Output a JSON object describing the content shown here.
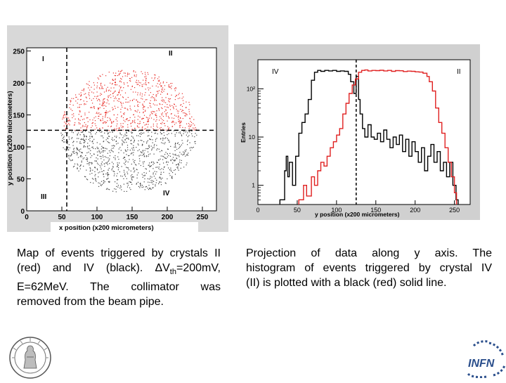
{
  "chart_data": [
    {
      "type": "scatter",
      "xlabel": "x position (x200 micrometers)",
      "ylabel": "y position (x200 micrometers)",
      "xlim": [
        0,
        270
      ],
      "ylim": [
        0,
        255
      ],
      "xticks": [
        "0",
        "50",
        "100",
        "150",
        "200",
        "250"
      ],
      "yticks": [
        "0",
        "50",
        "100",
        "150",
        "200",
        "250"
      ],
      "quadrant_labels": [
        "I",
        "II",
        "III",
        "IV"
      ],
      "divider_x": 57,
      "divider_y": 126,
      "cluster": {
        "center_x": 145,
        "center_y": 125,
        "radius": 97
      },
      "series": [
        {
          "name": "II",
          "color": "#e8302b",
          "y_min": 126,
          "y_max": 255
        },
        {
          "name": "IV",
          "color": "#444444",
          "y_min": 20,
          "y_max": 126
        }
      ],
      "grid": false
    },
    {
      "type": "line",
      "xlabel": "y position (x200 micrometers)",
      "ylabel": "Entries",
      "xlim": [
        0,
        270
      ],
      "ylim_log": [
        0.4,
        400
      ],
      "xticks": [
        "0",
        "50",
        "100",
        "150",
        "200",
        "250"
      ],
      "yticks": [
        "1",
        "10",
        "10²"
      ],
      "divider_x": 125,
      "series_labels": {
        "left": "IV",
        "right": "II"
      },
      "series": [
        {
          "name": "IV",
          "color": "#000000",
          "points": [
            [
              28,
              0.5
            ],
            [
              34,
              2
            ],
            [
              36,
              4
            ],
            [
              38,
              1.5
            ],
            [
              40,
              3
            ],
            [
              44,
              1
            ],
            [
              48,
              4
            ],
            [
              52,
              12
            ],
            [
              56,
              20
            ],
            [
              60,
              30
            ],
            [
              64,
              60
            ],
            [
              68,
              150
            ],
            [
              72,
              220
            ],
            [
              76,
              240
            ],
            [
              80,
              230
            ],
            [
              85,
              240
            ],
            [
              90,
              235
            ],
            [
              95,
              240
            ],
            [
              100,
              230
            ],
            [
              105,
              235
            ],
            [
              110,
              230
            ],
            [
              115,
              200
            ],
            [
              118,
              140
            ],
            [
              122,
              80
            ],
            [
              125,
              180
            ],
            [
              128,
              60
            ],
            [
              130,
              30
            ],
            [
              133,
              15
            ],
            [
              136,
              10
            ],
            [
              140,
              18
            ],
            [
              144,
              10
            ],
            [
              148,
              9
            ],
            [
              152,
              12
            ],
            [
              156,
              8
            ],
            [
              160,
              14
            ],
            [
              164,
              9
            ],
            [
              168,
              6
            ],
            [
              172,
              10
            ],
            [
              176,
              7
            ],
            [
              180,
              11
            ],
            [
              184,
              5
            ],
            [
              188,
              9
            ],
            [
              192,
              4
            ],
            [
              196,
              8
            ],
            [
              200,
              5
            ],
            [
              204,
              3
            ],
            [
              208,
              6
            ],
            [
              212,
              2
            ],
            [
              216,
              4
            ],
            [
              220,
              7
            ],
            [
              224,
              3
            ],
            [
              228,
              5
            ],
            [
              232,
              2
            ],
            [
              236,
              3
            ],
            [
              240,
              1.5
            ],
            [
              244,
              3
            ],
            [
              248,
              1
            ],
            [
              252,
              0.5
            ]
          ]
        },
        {
          "name": "II",
          "color": "#e02020",
          "points": [
            [
              52,
              0.5
            ],
            [
              58,
              1
            ],
            [
              62,
              0.6
            ],
            [
              68,
              1.5
            ],
            [
              72,
              1
            ],
            [
              76,
              2
            ],
            [
              80,
              3
            ],
            [
              84,
              2.5
            ],
            [
              88,
              4
            ],
            [
              92,
              6
            ],
            [
              96,
              8
            ],
            [
              100,
              11
            ],
            [
              104,
              15
            ],
            [
              108,
              30
            ],
            [
              112,
              50
            ],
            [
              116,
              80
            ],
            [
              120,
              120
            ],
            [
              124,
              160
            ],
            [
              128,
              220
            ],
            [
              132,
              240
            ],
            [
              136,
              245
            ],
            [
              140,
              235
            ],
            [
              145,
              240
            ],
            [
              150,
              238
            ],
            [
              155,
              242
            ],
            [
              160,
              235
            ],
            [
              165,
              240
            ],
            [
              170,
              230
            ],
            [
              175,
              238
            ],
            [
              180,
              236
            ],
            [
              185,
              228
            ],
            [
              190,
              232
            ],
            [
              195,
              230
            ],
            [
              200,
              225
            ],
            [
              205,
              222
            ],
            [
              210,
              210
            ],
            [
              215,
              180
            ],
            [
              218,
              140
            ],
            [
              222,
              90
            ],
            [
              226,
              40
            ],
            [
              230,
              20
            ],
            [
              234,
              12
            ],
            [
              238,
              6
            ],
            [
              242,
              3
            ],
            [
              246,
              1.5
            ],
            [
              250,
              0.7
            ]
          ]
        }
      ],
      "grid": false
    }
  ],
  "captions": {
    "left_lines": [
      "Map of events triggered by crystals II",
      "(red) and IV (black). ΔV",
      "E=62MeV. The collimator was",
      "removed from the beam pipe."
    ],
    "left_th_sub": "th",
    "left_th_rest": "=200mV,",
    "right_lines": [
      "Projection of data along y axis. The",
      "histogram of events triggered by crystal IV",
      "(II) is plotted with a black (red) solid line."
    ]
  },
  "logos": {
    "right_text": "INFN"
  },
  "colors": {
    "red": "#e8302b",
    "black": "#111111",
    "panel_gray": "#d8d8d8",
    "infn_blue": "#2b4f8c"
  }
}
